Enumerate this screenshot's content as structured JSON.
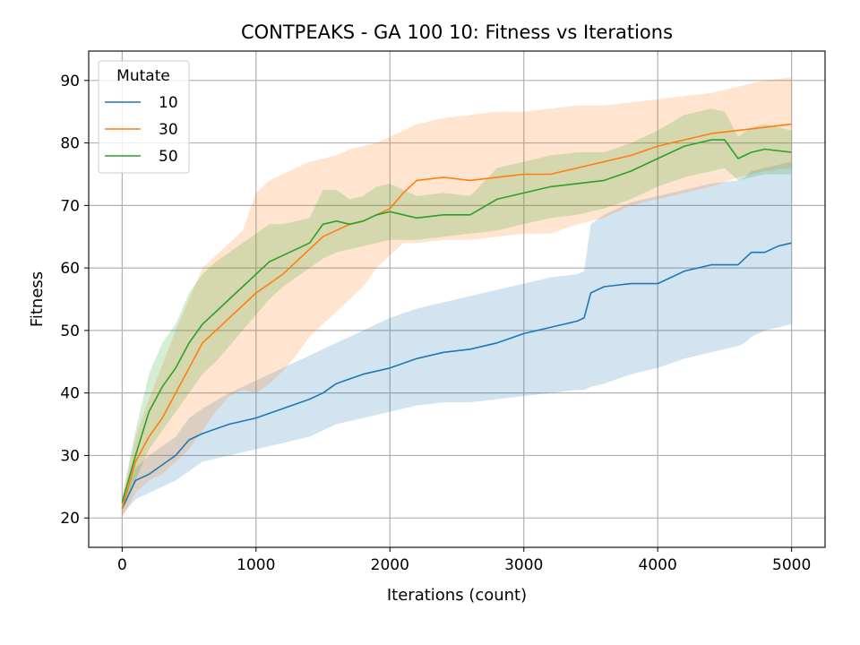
{
  "chart_data": {
    "type": "line",
    "title": "CONTPEAKS - GA 100 10: Fitness vs Iterations",
    "xlabel": "Iterations (count)",
    "ylabel": "Fitness",
    "xlim": [
      -250,
      5250
    ],
    "ylim": [
      15.3,
      94.7
    ],
    "xticks": [
      0,
      1000,
      2000,
      3000,
      4000,
      5000
    ],
    "yticks": [
      20,
      30,
      40,
      50,
      60,
      70,
      80,
      90
    ],
    "grid": true,
    "legend": {
      "title": "Mutate",
      "placement": "top-left"
    },
    "series": [
      {
        "name": "10",
        "color": "#1f77b4",
        "x": [
          0,
          100,
          200,
          300,
          400,
          500,
          600,
          800,
          1000,
          1200,
          1400,
          1500,
          1600,
          1800,
          2000,
          2200,
          2400,
          2600,
          2800,
          3000,
          3200,
          3400,
          3450,
          3500,
          3600,
          3800,
          4000,
          4200,
          4400,
          4600,
          4650,
          4700,
          4800,
          4900,
          5000
        ],
        "values": [
          21.5,
          26,
          27,
          28.5,
          30,
          32.5,
          33.5,
          35,
          36,
          37.5,
          39,
          40,
          41.5,
          43,
          44,
          45.5,
          46.5,
          47,
          48,
          49.5,
          50.5,
          51.5,
          52,
          56,
          57,
          57.5,
          57.5,
          59.5,
          60.5,
          60.5,
          61.5,
          62.5,
          62.5,
          63.5,
          64
        ],
        "lower": [
          20.5,
          23,
          24,
          25,
          26,
          27.5,
          29,
          30,
          31,
          32,
          33,
          34,
          35,
          36,
          37,
          38,
          38.5,
          38.5,
          39,
          39.5,
          40,
          40.5,
          40.5,
          41,
          41.5,
          43,
          44,
          45.5,
          46.5,
          47.5,
          48,
          49,
          50,
          50.5,
          51
        ],
        "upper": [
          22.5,
          28,
          30,
          31.5,
          33,
          36,
          37.5,
          40,
          42,
          44,
          46,
          47,
          48,
          50,
          52,
          53.5,
          54.5,
          55.5,
          56.5,
          57.5,
          58.5,
          59,
          59.5,
          67,
          68.5,
          70.5,
          71.5,
          72.5,
          73.5,
          74,
          74.5,
          75.5,
          76,
          76.5,
          77
        ]
      },
      {
        "name": "30",
        "color": "#ff7f0e",
        "x": [
          0,
          100,
          200,
          300,
          400,
          500,
          600,
          700,
          800,
          900,
          1000,
          1100,
          1200,
          1300,
          1400,
          1500,
          1600,
          1700,
          1800,
          1900,
          2000,
          2100,
          2200,
          2400,
          2600,
          2800,
          3000,
          3200,
          3400,
          3600,
          3800,
          4000,
          4200,
          4400,
          4600,
          4800,
          5000
        ],
        "values": [
          21.5,
          29,
          33,
          36,
          40,
          44,
          48,
          50,
          52,
          54,
          56,
          57.5,
          59,
          61,
          63,
          65,
          66,
          67,
          67.5,
          68.5,
          69.5,
          72,
          74,
          74.5,
          74,
          74.5,
          75,
          75,
          76,
          77,
          78,
          79.5,
          80.5,
          81.5,
          82,
          82.5,
          83
        ],
        "lower": [
          20,
          24,
          26,
          27,
          29,
          31,
          34,
          37,
          39.5,
          40.5,
          40,
          41.5,
          43.5,
          46,
          49,
          51,
          53,
          55,
          57,
          60,
          62,
          64,
          64,
          64.5,
          64.5,
          65,
          65.5,
          65.5,
          67,
          68,
          70,
          71,
          72,
          73,
          74.5,
          75.5,
          76
        ],
        "upper": [
          23,
          33,
          39,
          44.5,
          50,
          55,
          60,
          62,
          64,
          66,
          72,
          74,
          75,
          76,
          77,
          77.5,
          78,
          79,
          79.5,
          80,
          81,
          82,
          83,
          84,
          84.5,
          85,
          85,
          85.5,
          86,
          86,
          86.5,
          87,
          87.5,
          88,
          89,
          90,
          90.5
        ]
      },
      {
        "name": "50",
        "color": "#2ca02c",
        "x": [
          0,
          100,
          200,
          300,
          400,
          500,
          600,
          700,
          800,
          900,
          1000,
          1100,
          1200,
          1300,
          1400,
          1500,
          1600,
          1700,
          1800,
          1900,
          2000,
          2200,
          2400,
          2600,
          2800,
          3000,
          3200,
          3400,
          3600,
          3800,
          4000,
          4200,
          4400,
          4500,
          4550,
          4600,
          4700,
          4800,
          5000
        ],
        "values": [
          22.5,
          30,
          37,
          41,
          44,
          48,
          51,
          53,
          55,
          57,
          59,
          61,
          62,
          63,
          64,
          67,
          67.5,
          67,
          67.5,
          68.5,
          69,
          68,
          68.5,
          68.5,
          71,
          72,
          73,
          73.5,
          74,
          75.5,
          77.5,
          79.5,
          80.5,
          80.5,
          79,
          77.5,
          78.5,
          79,
          78.5
        ],
        "lower": [
          21.5,
          26,
          31,
          34,
          37,
          40,
          43,
          45,
          47.5,
          50,
          52.5,
          55,
          57,
          58.5,
          60,
          61.5,
          62.5,
          63,
          63.5,
          64,
          64.5,
          64.5,
          65,
          65.5,
          66,
          67,
          68,
          68.5,
          69.5,
          71,
          73,
          74.5,
          75.5,
          76,
          75,
          74,
          74.5,
          75,
          75
        ]
      }
    ]
  }
}
